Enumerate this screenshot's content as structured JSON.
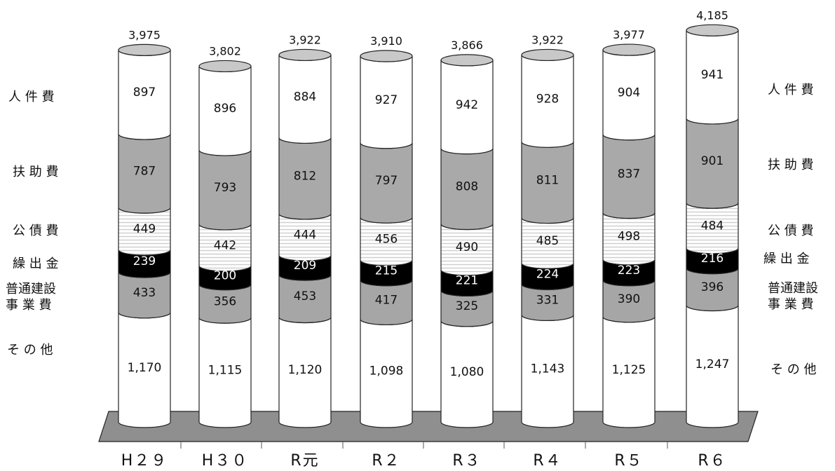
{
  "chart_data": {
    "type": "bar",
    "stacked": true,
    "style": "3d-cylinder",
    "categories": [
      "H29",
      "H30",
      "R元",
      "R2",
      "R3",
      "R4",
      "R5",
      "R6"
    ],
    "series": [
      {
        "name": "その他",
        "values": [
          1170,
          1115,
          1120,
          1098,
          1080,
          1143,
          1125,
          1247
        ],
        "labels": [
          "1,170",
          "1,115",
          "1,120",
          "1,098",
          "1,080",
          "1,143",
          "1,125",
          "1,247"
        ]
      },
      {
        "name": "普通建設事業費",
        "values": [
          433,
          356,
          453,
          417,
          325,
          331,
          390,
          396
        ],
        "labels": [
          "433",
          "356",
          "453",
          "417",
          "325",
          "331",
          "390",
          "396"
        ]
      },
      {
        "name": "繰出金",
        "values": [
          239,
          200,
          209,
          215,
          221,
          224,
          223,
          216
        ],
        "labels": [
          "239",
          "200",
          "209",
          "215",
          "221",
          "224",
          "223",
          "216"
        ]
      },
      {
        "name": "公債費",
        "values": [
          449,
          442,
          444,
          456,
          490,
          485,
          498,
          484
        ],
        "labels": [
          "449",
          "442",
          "444",
          "456",
          "490",
          "485",
          "498",
          "484"
        ]
      },
      {
        "name": "扶助費",
        "values": [
          787,
          793,
          812,
          797,
          808,
          811,
          837,
          901
        ],
        "labels": [
          "787",
          "793",
          "812",
          "797",
          "808",
          "811",
          "837",
          "901"
        ]
      },
      {
        "name": "人件費",
        "values": [
          897,
          896,
          884,
          927,
          942,
          928,
          904,
          941
        ],
        "labels": [
          "897",
          "896",
          "884",
          "927",
          "942",
          "928",
          "904",
          "941"
        ]
      }
    ],
    "totals": [
      3975,
      3802,
      3922,
      3910,
      3866,
      3922,
      3977,
      4185
    ],
    "total_labels": [
      "3,975",
      "3,802",
      "3,922",
      "3,910",
      "3,866",
      "3,922",
      "3,977",
      "4,185"
    ],
    "left_legend": {
      "jinkenhi": "人 件 費",
      "fujohi": "扶 助 費",
      "kosaihi": "公 債 費",
      "kuridashikin": "繰 出 金",
      "futsu_line1": "普通建設",
      "futsu_line2": "事 業 費",
      "sonota": "そ の 他"
    },
    "right_legend": {
      "jinkenhi": "人 件 費",
      "fujohi": "扶 助 費",
      "kosaihi": "公 債 費",
      "kuridashikin": "繰 出 金",
      "futsu_line1": "普通建設",
      "futsu_line2": "事 業 費",
      "sonota": "そ の 他"
    },
    "category_labels": [
      "H２９",
      "H３０",
      "R元",
      "R２",
      "R３",
      "R４",
      "R５",
      "R６"
    ],
    "colors": {
      "jinkenhi": "#ffffff",
      "fujohi": "#a9a9a9",
      "kosaihi": "#f4f4f4",
      "kuridashikin": "#000000",
      "futsu": "#a6a6a6",
      "sonota": "#ffffff",
      "top_cap": "#c8c8c8",
      "base": "#8f8f8f",
      "outline": "#222222"
    },
    "legend_placement": "left and right",
    "grid": false
  }
}
